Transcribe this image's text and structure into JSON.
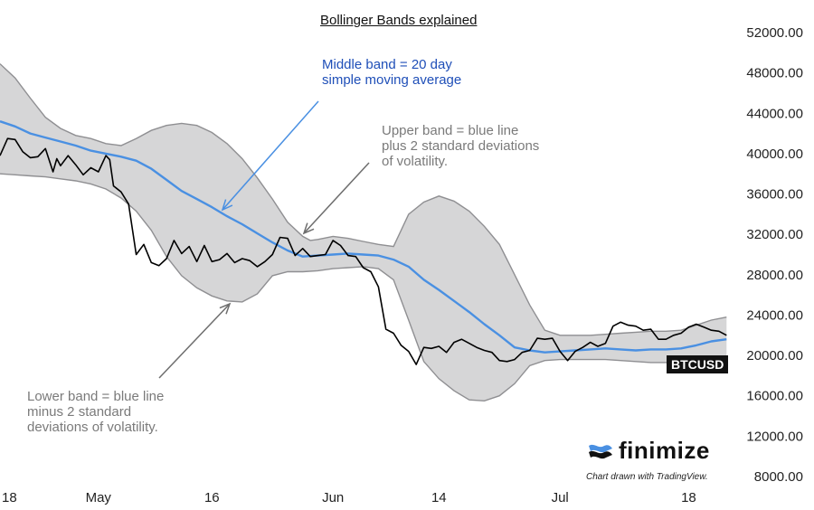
{
  "title": "Bollinger Bands explained",
  "ticker": "BTCUSD",
  "brand": {
    "name": "finimize",
    "credit": "Chart drawn with TradingView."
  },
  "annotations": {
    "middle": [
      "Middle band = 20 day",
      "simple moving average"
    ],
    "upper": [
      "Upper band = blue line",
      "plus 2 standard deviations",
      "of volatility."
    ],
    "lower": [
      "Lower band = blue line",
      "minus 2 standard",
      "deviations of volatility."
    ]
  },
  "colors": {
    "band_fill": "#d6d6d7",
    "band_edge": "#8f8f92",
    "middle_line": "#4a90e2",
    "price_line": "#000000",
    "annotation_blue": "#1f4fb8",
    "annotation_gray": "#7a7a7a",
    "arrow_blue": "#4a90e2",
    "arrow_gray": "#6e6e6e"
  },
  "chart_data": {
    "type": "line",
    "ylim": [
      8000,
      52000
    ],
    "y_ticks": [
      "52000.00",
      "48000.00",
      "44000.00",
      "40000.00",
      "36000.00",
      "32000.00",
      "28000.00",
      "24000.00",
      "20000.00",
      "16000.00",
      "12000.00",
      "8000.00"
    ],
    "x_ticks": [
      {
        "label": "18",
        "day": 0
      },
      {
        "label": "May",
        "day": 13
      },
      {
        "label": "16",
        "day": 28
      },
      {
        "label": "Jun",
        "day": 44
      },
      {
        "label": "14",
        "day": 58
      },
      {
        "label": "Jul",
        "day": 74
      },
      {
        "label": "18",
        "day": 91
      }
    ],
    "grid": false,
    "series": [
      {
        "name": "Upper band",
        "x": [
          0,
          2,
          4,
          6,
          8,
          10,
          12,
          14,
          16,
          18,
          20,
          22,
          24,
          26,
          28,
          30,
          32,
          34,
          36,
          38,
          40,
          41,
          42,
          44,
          46,
          48,
          50,
          52,
          54,
          56,
          58,
          60,
          62,
          64,
          66,
          68,
          70,
          72,
          74,
          76,
          78,
          80,
          82,
          84,
          86,
          88,
          90,
          92,
          94,
          96
        ],
        "y": [
          48900,
          47500,
          45500,
          43600,
          42500,
          41800,
          41500,
          41000,
          40800,
          41500,
          42300,
          42800,
          43000,
          42800,
          42100,
          41000,
          39500,
          37600,
          35500,
          33200,
          31800,
          31400,
          31500,
          31800,
          31600,
          31300,
          31000,
          30800,
          34000,
          35200,
          35800,
          35300,
          34300,
          32800,
          31000,
          28000,
          25000,
          22500,
          22000,
          22000,
          22000,
          22100,
          22200,
          22300,
          22400,
          22400,
          22500,
          23000,
          23500,
          23800
        ]
      },
      {
        "name": "Middle band",
        "x": [
          0,
          2,
          4,
          6,
          8,
          10,
          12,
          14,
          16,
          18,
          20,
          22,
          24,
          26,
          28,
          30,
          32,
          34,
          36,
          38,
          40,
          42,
          44,
          46,
          48,
          50,
          52,
          54,
          56,
          58,
          60,
          62,
          64,
          66,
          68,
          70,
          72,
          74,
          76,
          78,
          80,
          82,
          84,
          86,
          88,
          90,
          92,
          94,
          96
        ],
        "y": [
          43200,
          42700,
          42000,
          41600,
          41200,
          40800,
          40300,
          40000,
          39700,
          39300,
          38500,
          37400,
          36300,
          35500,
          34700,
          33800,
          33000,
          32100,
          31200,
          30400,
          29800,
          29900,
          30000,
          30100,
          30000,
          29900,
          29500,
          28800,
          27500,
          26500,
          25400,
          24300,
          23100,
          22000,
          20800,
          20500,
          20300,
          20400,
          20500,
          20600,
          20700,
          20600,
          20500,
          20600,
          20600,
          20700,
          21000,
          21400,
          21600
        ]
      },
      {
        "name": "Lower band",
        "x": [
          0,
          2,
          4,
          6,
          8,
          10,
          12,
          14,
          16,
          18,
          20,
          22,
          24,
          26,
          28,
          30,
          32,
          34,
          36,
          38,
          40,
          42,
          44,
          46,
          48,
          50,
          52,
          54,
          56,
          58,
          60,
          62,
          64,
          66,
          68,
          70,
          72,
          74,
          76,
          78,
          80,
          82,
          84,
          86,
          88,
          90,
          92,
          94,
          96
        ],
        "y": [
          38000,
          37900,
          37800,
          37700,
          37500,
          37300,
          37000,
          36500,
          35600,
          34300,
          32400,
          29800,
          27900,
          26700,
          25900,
          25400,
          25300,
          26100,
          27900,
          28300,
          28300,
          28400,
          28600,
          28700,
          28800,
          28600,
          27500,
          23500,
          19400,
          17700,
          16500,
          15600,
          15500,
          16000,
          17200,
          19000,
          19500,
          19600,
          19600,
          19600,
          19600,
          19500,
          19400,
          19300,
          19300,
          19200,
          19300,
          19300,
          19400
        ]
      },
      {
        "name": "BTCUSD",
        "x": [
          0,
          1,
          2,
          3,
          4,
          5,
          6,
          7,
          7.5,
          8,
          9,
          10,
          11,
          12,
          13,
          14,
          14.5,
          15,
          16,
          17,
          18,
          19,
          20,
          21,
          22,
          23,
          24,
          25,
          26,
          27,
          28,
          29,
          30,
          31,
          32,
          33,
          34,
          35,
          36,
          37,
          38,
          39,
          40,
          41,
          42,
          43,
          44,
          45,
          46,
          47,
          48,
          49,
          50,
          51,
          52,
          53,
          54,
          55,
          56,
          57,
          58,
          59,
          60,
          61,
          62,
          63,
          64,
          65,
          66,
          67,
          68,
          69,
          70,
          71,
          72,
          73,
          74,
          75,
          76,
          77,
          78,
          79,
          80,
          81,
          82,
          83,
          84,
          85,
          86,
          87,
          88,
          89,
          90,
          91,
          92,
          93,
          94,
          95,
          96
        ],
        "y": [
          39800,
          41500,
          41400,
          40200,
          39600,
          39700,
          40500,
          38200,
          39500,
          38800,
          39800,
          38900,
          37900,
          38600,
          38200,
          39800,
          39400,
          36800,
          36200,
          35000,
          30000,
          31000,
          29200,
          28900,
          29600,
          31400,
          30100,
          30800,
          29300,
          30900,
          29300,
          29500,
          30100,
          29200,
          29600,
          29400,
          28800,
          29300,
          30000,
          31700,
          31600,
          29900,
          30600,
          29800,
          29900,
          30000,
          31400,
          30900,
          29900,
          29800,
          28700,
          28300,
          26800,
          22600,
          22200,
          21000,
          20400,
          19100,
          20800,
          20700,
          20900,
          20300,
          21300,
          21600,
          21200,
          20800,
          20500,
          20300,
          19500,
          19400,
          19600,
          20300,
          20500,
          21700,
          21600,
          21700,
          20400,
          19500,
          20400,
          20800,
          21300,
          20900,
          21200,
          22900,
          23300,
          23000,
          22900,
          22500,
          22600,
          21600,
          21600,
          22000,
          22200,
          22800,
          23100,
          22800,
          22500,
          22400,
          22000
        ]
      }
    ]
  }
}
